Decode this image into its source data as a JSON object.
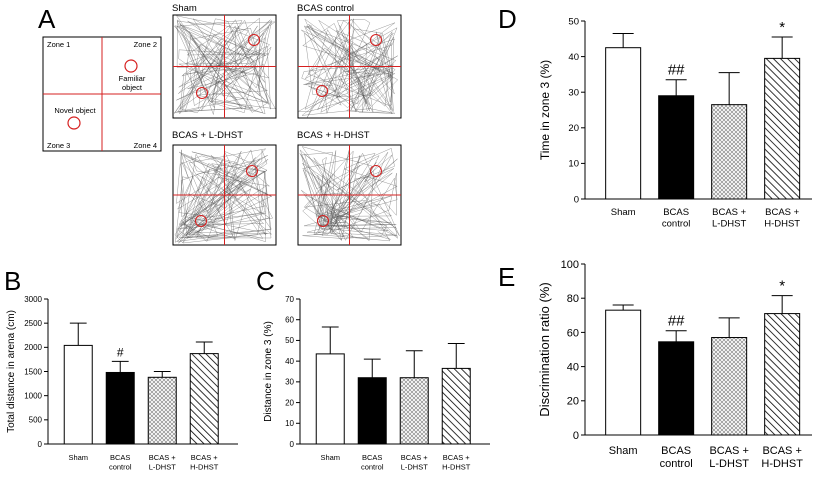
{
  "panel_letters": {
    "a": "A",
    "b": "B",
    "c": "C",
    "d": "D",
    "e": "E"
  },
  "schematic": {
    "zone1": "Zone 1",
    "zone2": "Zone 2",
    "zone3": "Zone 3",
    "zone4": "Zone 4",
    "familiar_line1": "Familiar",
    "familiar_line2": "object",
    "novel": "Novel object"
  },
  "tracks": {
    "sham": "Sham",
    "bcas": "BCAS control",
    "ldhst": "BCAS + L-DHST",
    "hdhst": "BCAS + H-DHST"
  },
  "colors": {
    "red": "#d62020",
    "black": "#000000",
    "white": "#ffffff",
    "gray_hatch": "#9a9a9a"
  },
  "chart_data": [
    {
      "panel": "B",
      "type": "bar",
      "ylabel": "Total distance in arena (cm)",
      "ylim": [
        0,
        3000
      ],
      "yticks": [
        0,
        500,
        1000,
        1500,
        2000,
        2500,
        3000
      ],
      "categories": [
        [
          "Sham"
        ],
        [
          "BCAS",
          "control"
        ],
        [
          "BCAS +",
          "L-DHST"
        ],
        [
          "BCAS +",
          "H-DHST"
        ]
      ],
      "values": [
        2040,
        1480,
        1380,
        1870
      ],
      "errors": [
        460,
        230,
        120,
        240
      ],
      "annotations": [
        "",
        "#",
        "",
        ""
      ]
    },
    {
      "panel": "C",
      "type": "bar",
      "ylabel": "Distance in zone 3 (%)",
      "ylim": [
        0,
        70
      ],
      "yticks": [
        0,
        10,
        20,
        30,
        40,
        50,
        60,
        70
      ],
      "categories": [
        [
          "Sham"
        ],
        [
          "BCAS",
          "control"
        ],
        [
          "BCAS +",
          "L-DHST"
        ],
        [
          "BCAS +",
          "H-DHST"
        ]
      ],
      "values": [
        43.5,
        32,
        32,
        36.5
      ],
      "errors": [
        13,
        9,
        13,
        12
      ],
      "annotations": [
        "",
        "",
        "",
        ""
      ]
    },
    {
      "panel": "D",
      "type": "bar",
      "ylabel": "Time in zone 3 (%)",
      "ylim": [
        0,
        50
      ],
      "yticks": [
        0,
        10,
        20,
        30,
        40,
        50
      ],
      "categories": [
        [
          "Sham"
        ],
        [
          "BCAS",
          "control"
        ],
        [
          "BCAS +",
          "L-DHST"
        ],
        [
          "BCAS +",
          "H-DHST"
        ]
      ],
      "values": [
        42.5,
        29,
        26.5,
        39.5
      ],
      "errors": [
        4,
        4.5,
        9,
        6
      ],
      "annotations": [
        "",
        "##",
        "",
        "*"
      ]
    },
    {
      "panel": "E",
      "type": "bar",
      "ylabel": "Discrimination ratio (%)",
      "ylim": [
        0,
        100
      ],
      "yticks": [
        0,
        20,
        40,
        60,
        80,
        100
      ],
      "categories": [
        [
          "Sham"
        ],
        [
          "BCAS",
          "control"
        ],
        [
          "BCAS +",
          "L-DHST"
        ],
        [
          "BCAS +",
          "H-DHST"
        ]
      ],
      "values": [
        73,
        54.5,
        57,
        71
      ],
      "errors": [
        3,
        6.5,
        11.5,
        10.5
      ],
      "annotations": [
        "",
        "##",
        "",
        "*"
      ]
    }
  ]
}
